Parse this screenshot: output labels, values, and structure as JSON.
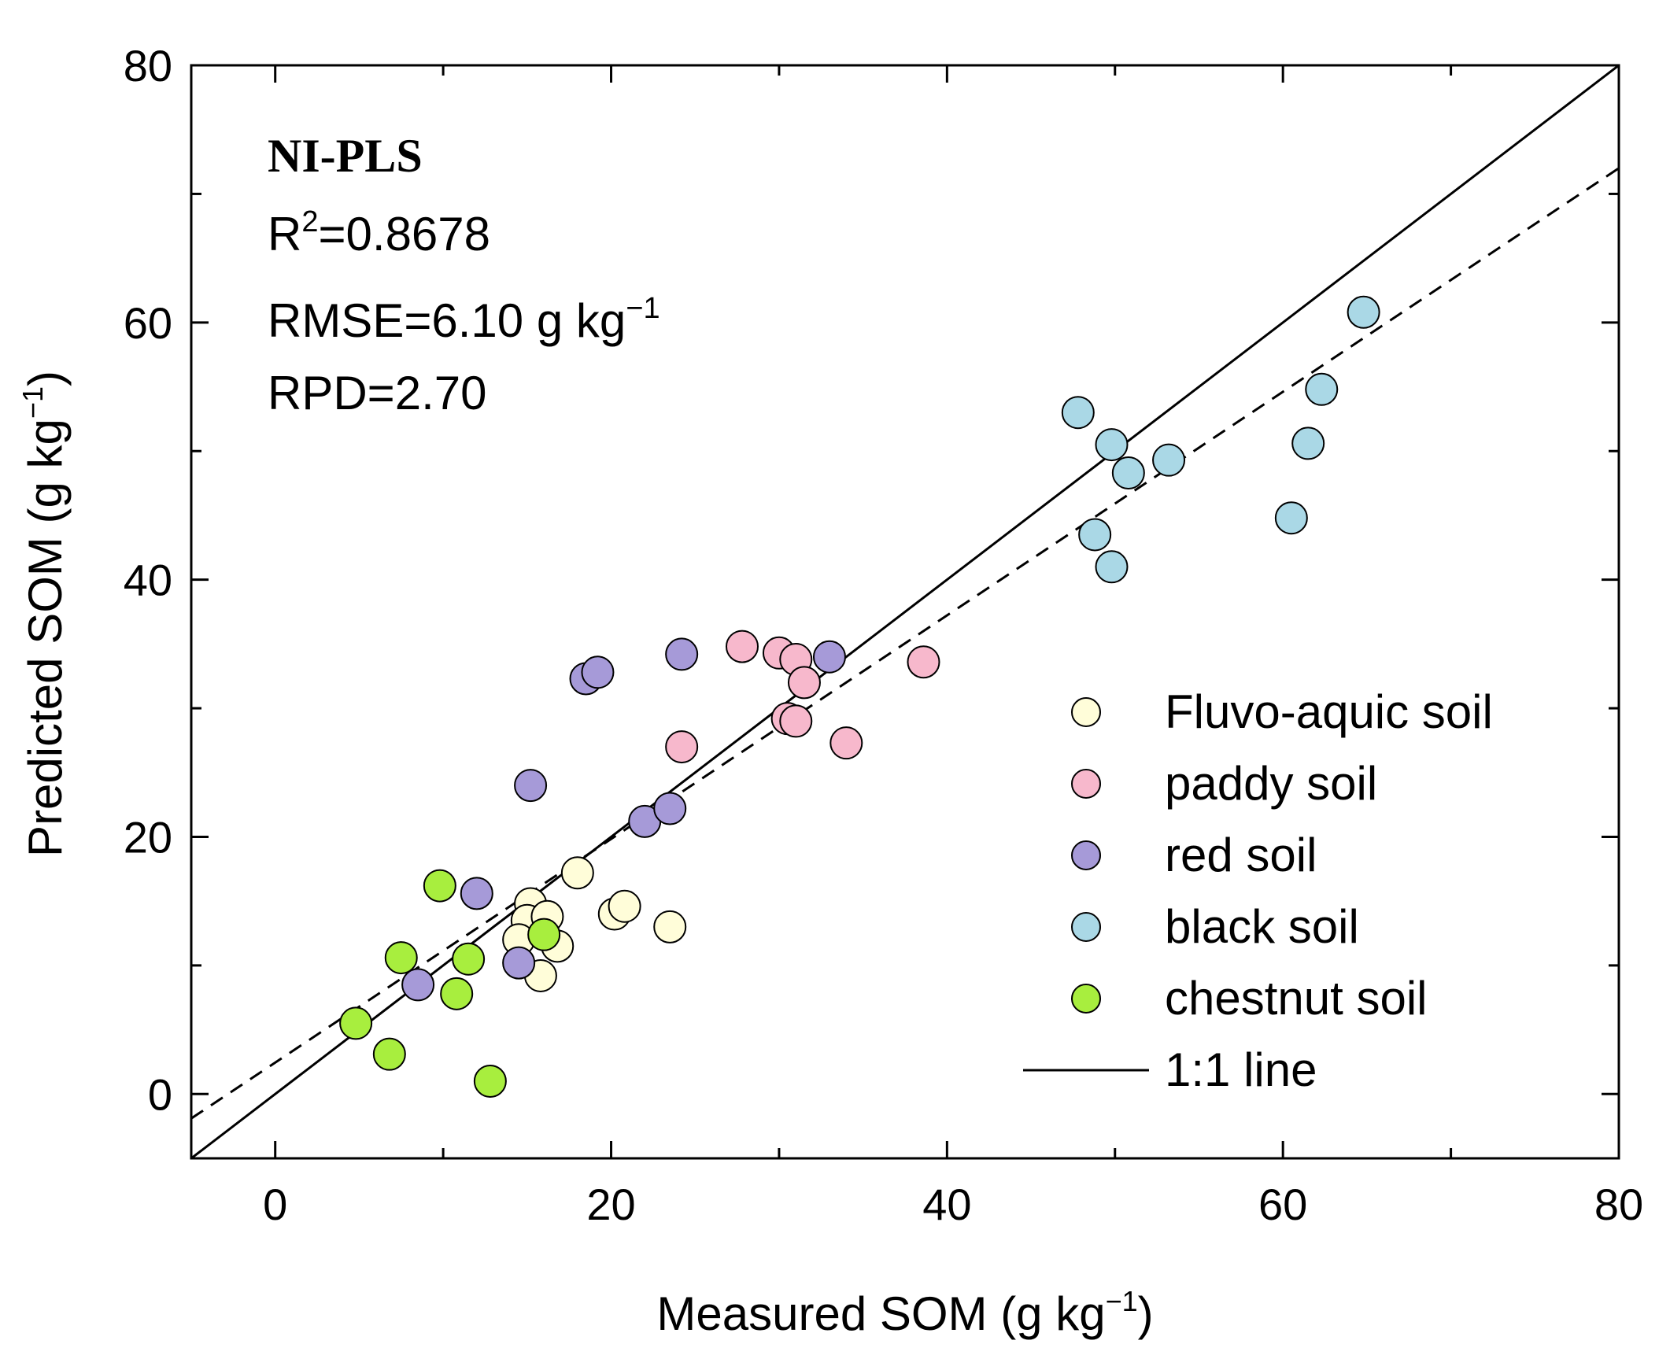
{
  "chart_data": {
    "type": "scatter",
    "title": "",
    "xlabel": "Measured SOM (g kg",
    "xlabel_sup": "−1",
    "xlabel_end": ")",
    "ylabel": "Predicted SOM (g kg",
    "ylabel_sup": "−1",
    "ylabel_end": ")",
    "xlim": [
      -5,
      80
    ],
    "ylim": [
      -5,
      80
    ],
    "xticks": [
      0,
      20,
      40,
      60,
      80
    ],
    "yticks": [
      0,
      20,
      40,
      60,
      80
    ],
    "xtick_labels": [
      "0",
      "20",
      "40",
      "60",
      "80"
    ],
    "ytick_labels": [
      "0",
      "20",
      "40",
      "60",
      "80"
    ],
    "model_name": "NI-PLS",
    "stats": {
      "r2_prefix": "R",
      "r2_sup": "2",
      "r2_value": "=0.8678",
      "rmse_text": "RMSE=6.10 g kg",
      "rmse_sup": "−1",
      "rpd_text": "RPD=2.70"
    },
    "series": [
      {
        "name": "Fluvo-aquic soil",
        "color": "#FFFDD9",
        "points": [
          [
            15.2,
            14.8
          ],
          [
            15.0,
            13.5
          ],
          [
            14.5,
            12.0
          ],
          [
            16.2,
            13.8
          ],
          [
            16.8,
            11.5
          ],
          [
            15.8,
            9.2
          ],
          [
            18.0,
            17.2
          ],
          [
            20.2,
            14.0
          ],
          [
            20.8,
            14.6
          ],
          [
            23.5,
            13.0
          ]
        ]
      },
      {
        "name": "paddy soil",
        "color": "#F7B8CC",
        "points": [
          [
            27.8,
            34.8
          ],
          [
            30.0,
            34.3
          ],
          [
            31.0,
            33.8
          ],
          [
            31.5,
            32.0
          ],
          [
            30.5,
            29.2
          ],
          [
            31.0,
            29.0
          ],
          [
            24.2,
            27.0
          ],
          [
            34.0,
            27.3
          ],
          [
            38.6,
            33.6
          ]
        ]
      },
      {
        "name": "red soil",
        "color": "#A69AD8",
        "points": [
          [
            18.5,
            32.3
          ],
          [
            19.2,
            32.8
          ],
          [
            24.2,
            34.2
          ],
          [
            33.0,
            34.0
          ],
          [
            15.2,
            24.0
          ],
          [
            22.0,
            21.2
          ],
          [
            23.5,
            22.2
          ],
          [
            12.0,
            15.6
          ],
          [
            14.5,
            10.2
          ],
          [
            8.5,
            8.5
          ]
        ]
      },
      {
        "name": "black soil",
        "color": "#AAD8E6",
        "points": [
          [
            47.8,
            53.0
          ],
          [
            49.8,
            50.5
          ],
          [
            50.8,
            48.3
          ],
          [
            53.2,
            49.3
          ],
          [
            48.8,
            43.5
          ],
          [
            49.8,
            41.0
          ],
          [
            60.5,
            44.8
          ],
          [
            61.5,
            50.6
          ],
          [
            62.3,
            54.8
          ],
          [
            64.8,
            60.8
          ]
        ]
      },
      {
        "name": "chestnut soil",
        "color": "#A8EE3E",
        "points": [
          [
            9.8,
            16.2
          ],
          [
            7.5,
            10.6
          ],
          [
            11.5,
            10.5
          ],
          [
            10.8,
            7.8
          ],
          [
            16.0,
            12.4
          ],
          [
            4.8,
            5.5
          ],
          [
            6.8,
            3.1
          ],
          [
            12.8,
            1.0
          ]
        ]
      }
    ],
    "reference_line": {
      "name": "1:1 line",
      "style": "solid",
      "x": [
        -5,
        80
      ],
      "y": [
        -5,
        80
      ]
    },
    "fit_line": {
      "style": "dashed",
      "x": [
        -5,
        80
      ],
      "y": [
        -1.9,
        72.0
      ]
    },
    "legend_position": "lower-right"
  }
}
